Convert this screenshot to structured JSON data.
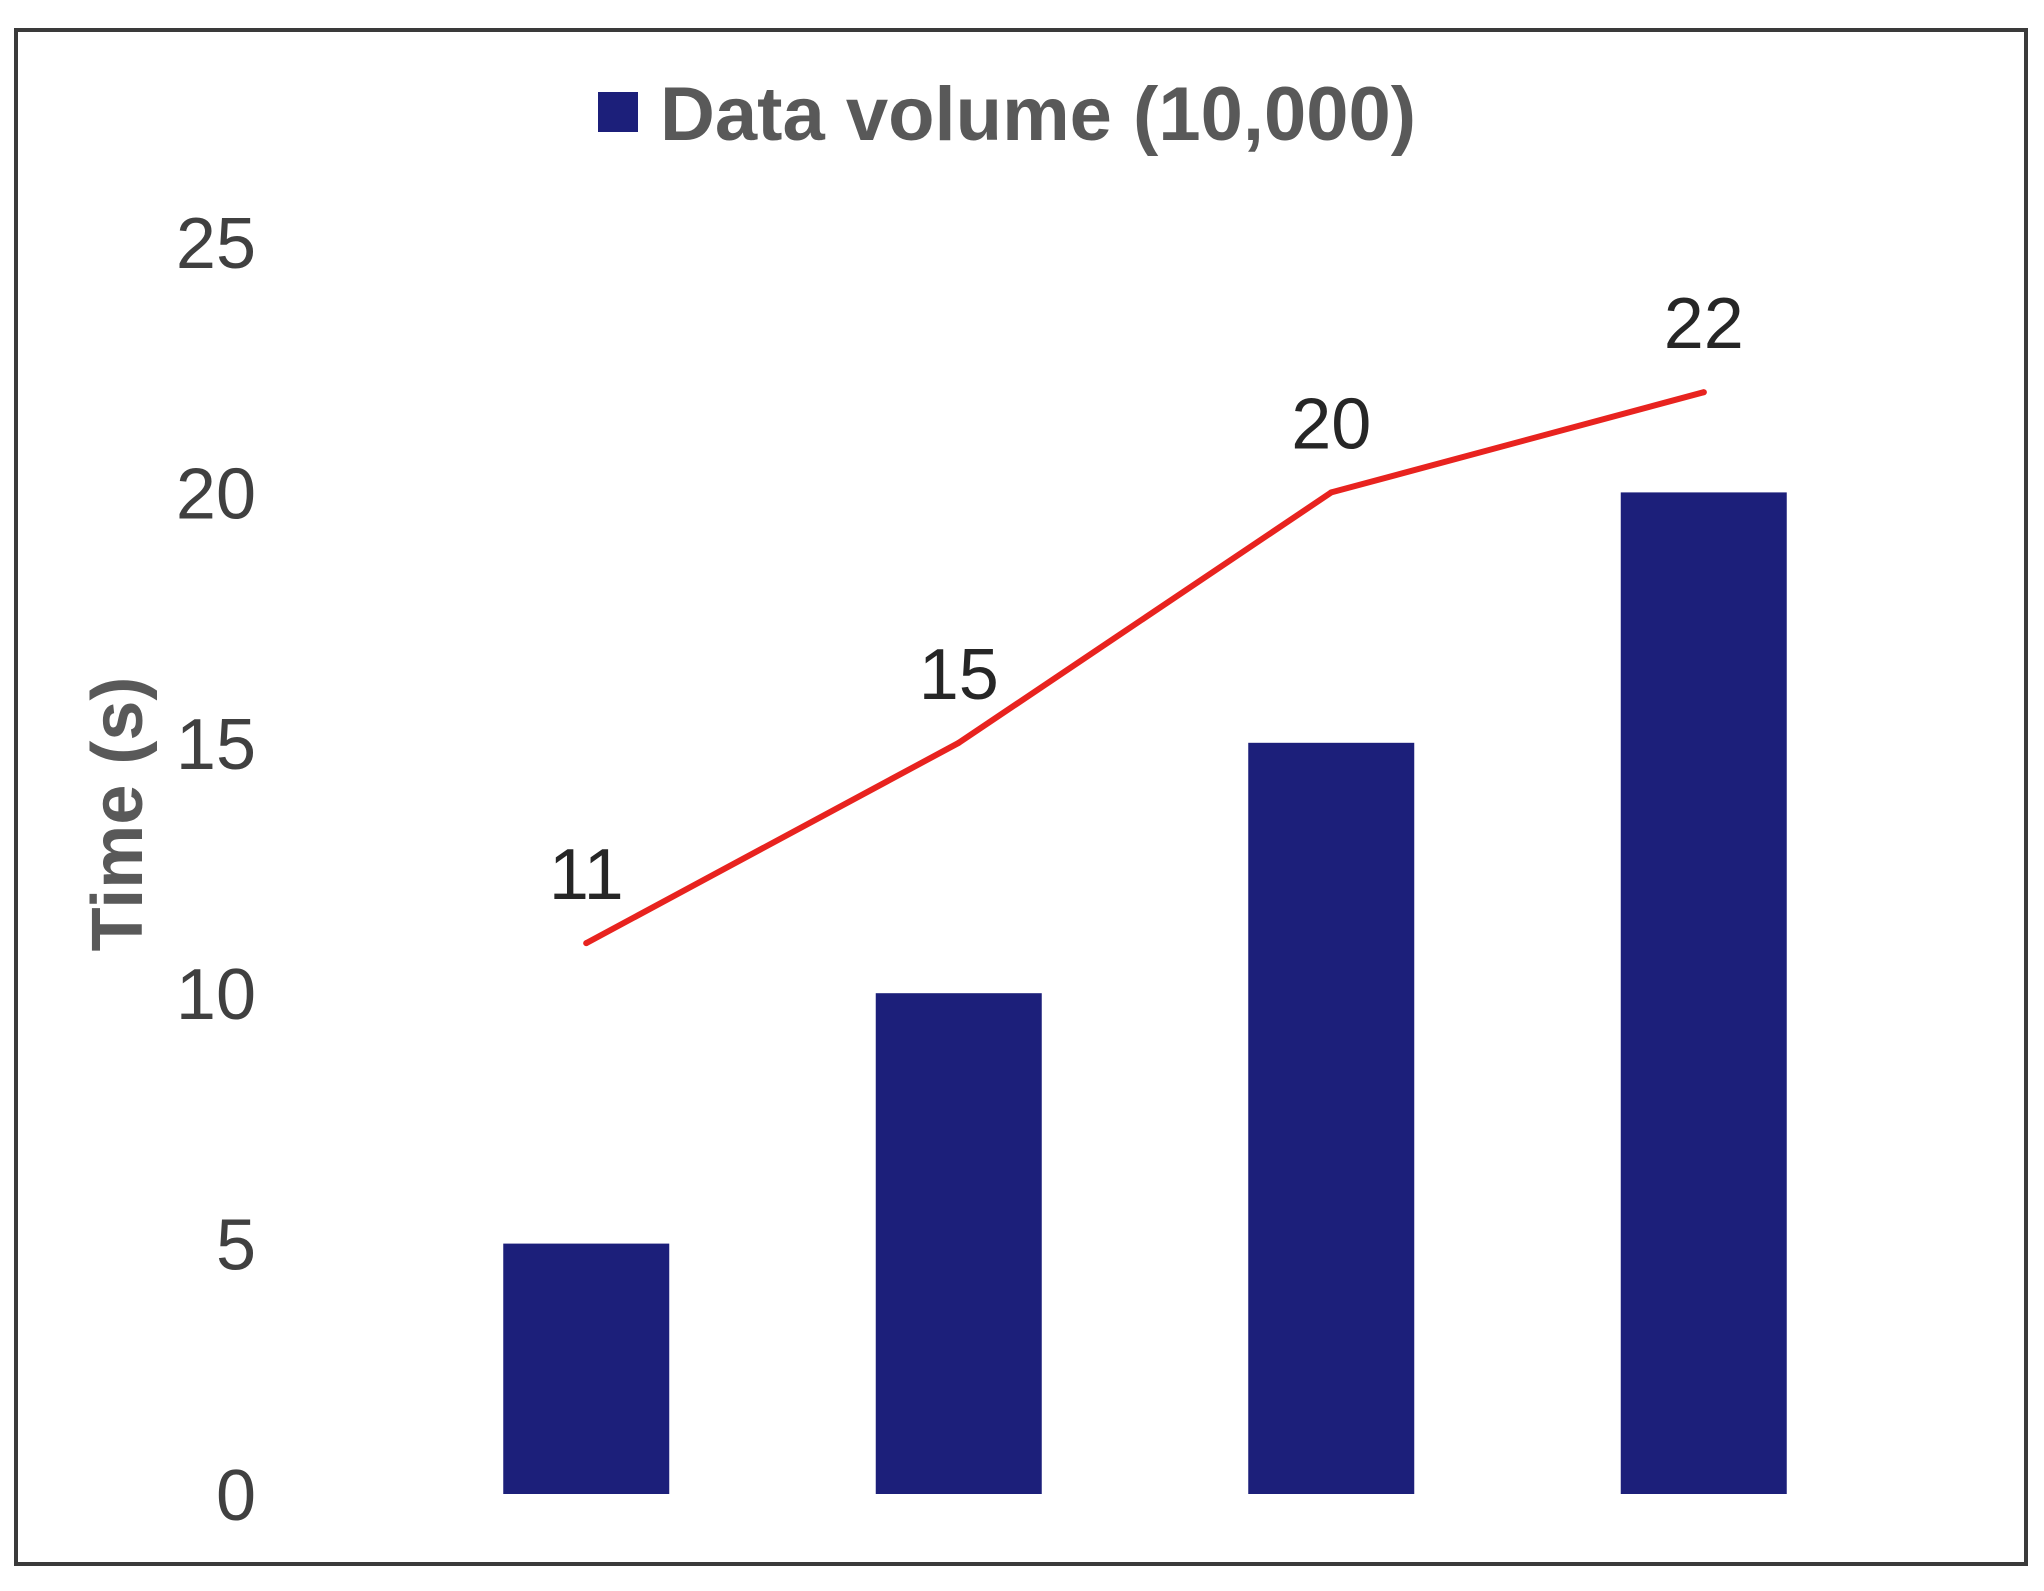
{
  "chart_data": {
    "type": "bar",
    "categories": [
      "",
      "",
      "",
      ""
    ],
    "series": [
      {
        "name": "Data volume (10,000)",
        "type": "bar",
        "values": [
          5,
          10,
          15,
          20
        ],
        "color": "#1c1f7a"
      },
      {
        "type": "line",
        "values": [
          11,
          15,
          20,
          22
        ],
        "data_labels": [
          "11",
          "15",
          "20",
          "22"
        ],
        "color": "#e8231f"
      }
    ],
    "ylabel": "Time (s)",
    "xlabel": "",
    "ylim": [
      0,
      25
    ],
    "yticks": [
      "0",
      "5",
      "10",
      "15",
      "20",
      "25"
    ],
    "grid": false,
    "legend_position": "top-center"
  }
}
